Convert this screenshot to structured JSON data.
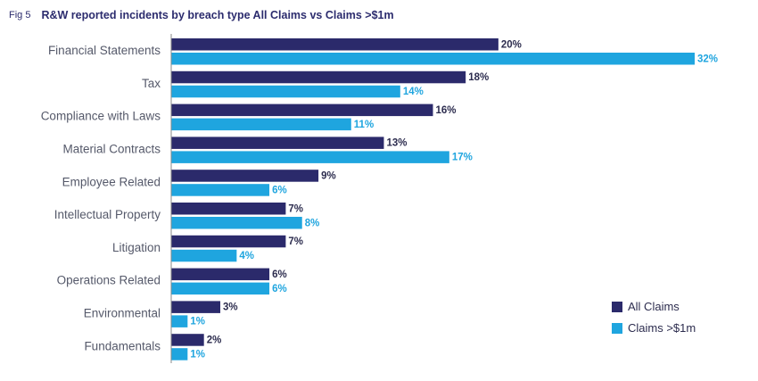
{
  "header": {
    "fig_label": "Fig 5",
    "title": "R&W reported incidents by breach type All Claims vs Claims >$1m"
  },
  "chart_data": {
    "type": "bar",
    "orientation": "horizontal",
    "title": "R&W reported incidents by breach type All Claims vs Claims >$1m",
    "categories": [
      "Financial Statements",
      "Tax",
      "Compliance with Laws",
      "Material Contracts",
      "Employee Related",
      "Intellectual Property",
      "Litigation",
      "Operations Related",
      "Environmental",
      "Fundamentals"
    ],
    "series": [
      {
        "name": "All Claims",
        "color": "#2b2a6b",
        "values": [
          20,
          18,
          16,
          13,
          9,
          7,
          7,
          6,
          3,
          2
        ]
      },
      {
        "name": "Claims >$1m",
        "color": "#1fa5df",
        "values": [
          32,
          14,
          11,
          17,
          6,
          8,
          4,
          6,
          1,
          1
        ]
      }
    ],
    "value_suffix": "%",
    "xlim": [
      0,
      32
    ],
    "grid": false,
    "legend_position": "bottom-right"
  }
}
